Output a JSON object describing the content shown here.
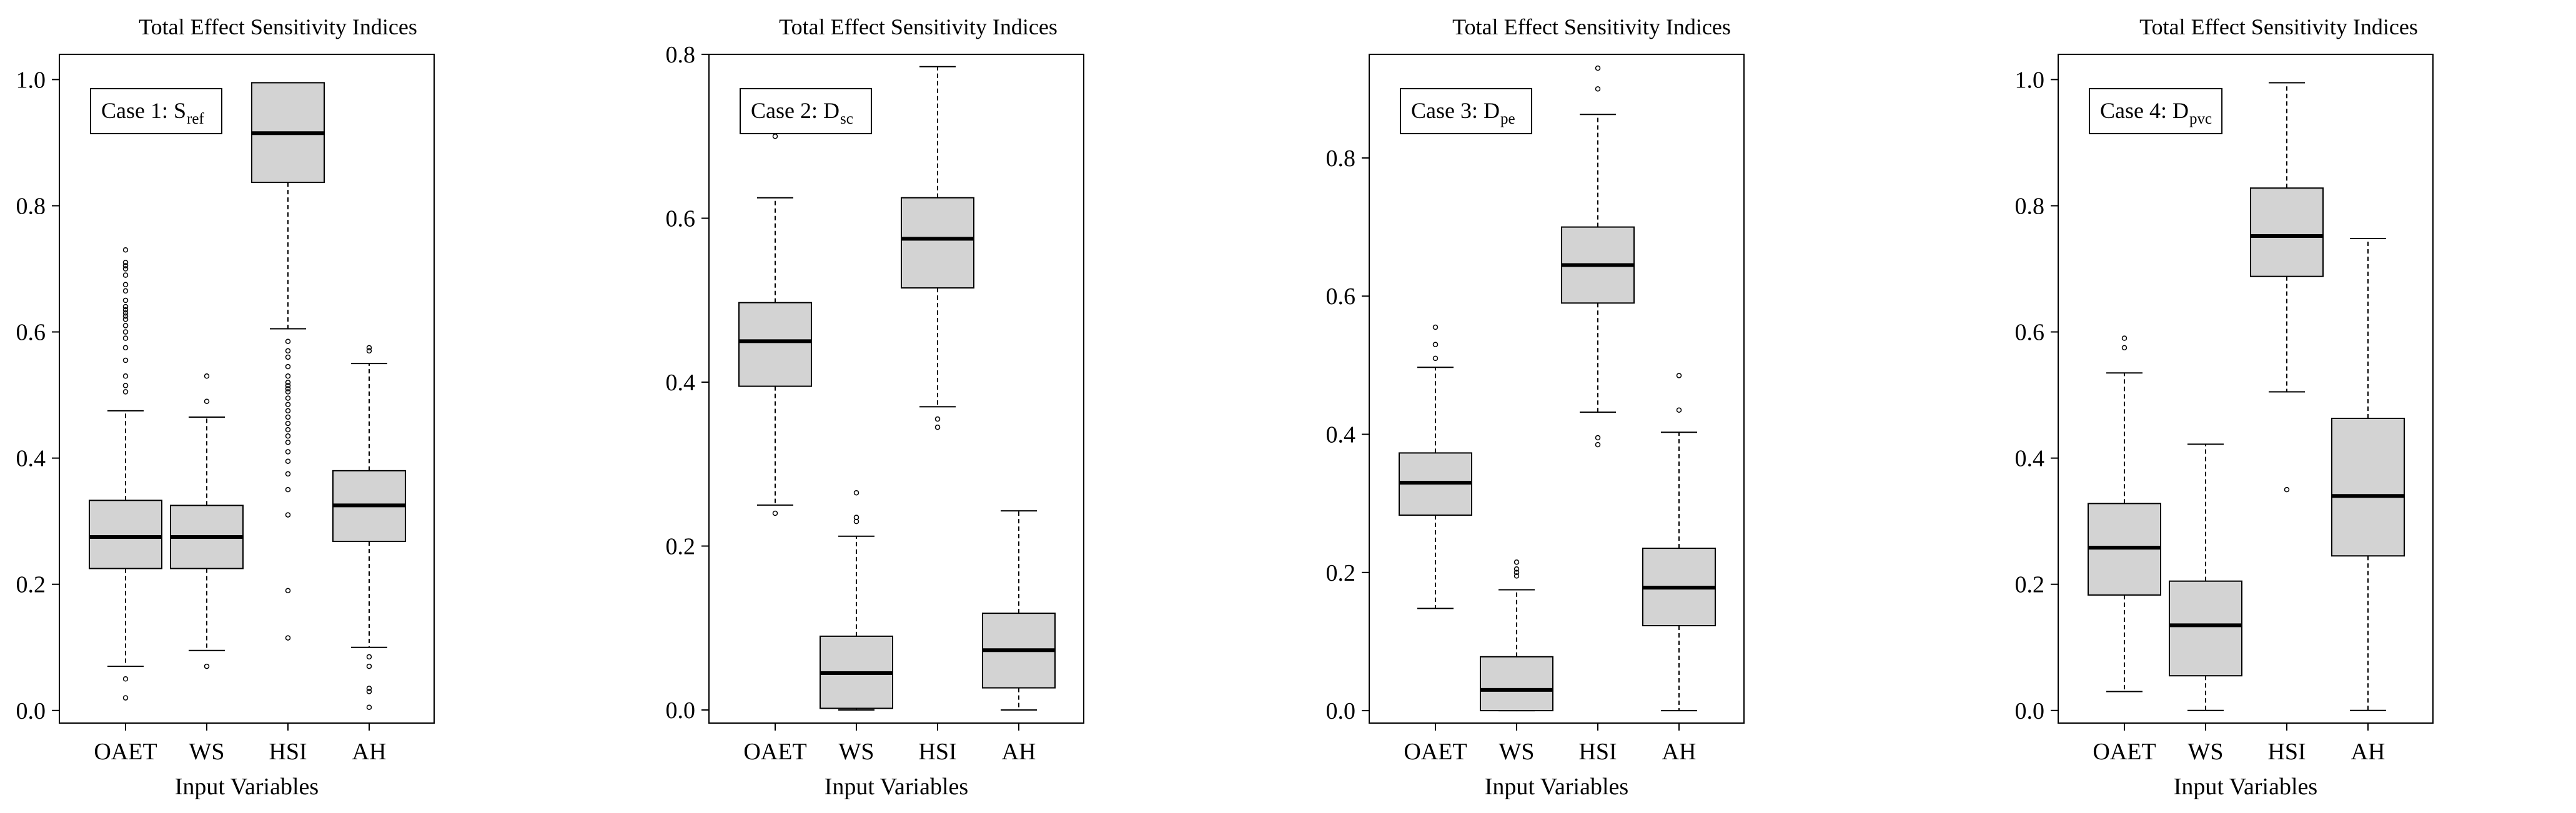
{
  "colors": {
    "box_fill": "#d3d3d3",
    "stroke": "#000000",
    "background": "#ffffff"
  },
  "chart_data": [
    {
      "type": "boxplot",
      "title": "Total Effect Sensitivity Indices",
      "case_label": "Case 1: S",
      "case_sub": "ref",
      "xlabel": "Input Variables",
      "ylabel": "",
      "ylim": [
        -0.02,
        1.04
      ],
      "yticks": [
        0.0,
        0.2,
        0.4,
        0.6,
        0.8,
        1.0
      ],
      "ytick_labels": [
        "0.0",
        "0.2",
        "0.4",
        "0.6",
        "0.8",
        "1.0"
      ],
      "categories": [
        "OAET",
        "WS",
        "HSI",
        "AH"
      ],
      "boxes": [
        {
          "name": "OAET",
          "whisker_low": 0.07,
          "q1": 0.225,
          "median": 0.275,
          "q3": 0.333,
          "whisker_high": 0.475,
          "outliers": [
            0.02,
            0.05,
            0.505,
            0.515,
            0.53,
            0.555,
            0.575,
            0.59,
            0.6,
            0.61,
            0.62,
            0.625,
            0.63,
            0.635,
            0.64,
            0.65,
            0.665,
            0.675,
            0.69,
            0.7,
            0.705,
            0.71,
            0.73
          ]
        },
        {
          "name": "WS",
          "whisker_low": 0.095,
          "q1": 0.225,
          "median": 0.275,
          "q3": 0.325,
          "whisker_high": 0.465,
          "outliers": [
            0.07,
            0.49,
            0.53
          ]
        },
        {
          "name": "HSI",
          "whisker_low": 0.605,
          "q1": 0.837,
          "median": 0.915,
          "q3": 0.995,
          "whisker_high": 0.995,
          "outliers": [
            0.115,
            0.19,
            0.31,
            0.35,
            0.375,
            0.395,
            0.41,
            0.425,
            0.435,
            0.445,
            0.455,
            0.465,
            0.475,
            0.485,
            0.495,
            0.505,
            0.51,
            0.515,
            0.52,
            0.53,
            0.545,
            0.56,
            0.57,
            0.585
          ]
        },
        {
          "name": "AH",
          "whisker_low": 0.1,
          "q1": 0.268,
          "median": 0.325,
          "q3": 0.38,
          "whisker_high": 0.55,
          "outliers": [
            0.005,
            0.03,
            0.035,
            0.07,
            0.085,
            0.57,
            0.575
          ]
        }
      ]
    },
    {
      "type": "boxplot",
      "title": "Total Effect Sensitivity Indices",
      "case_label": "Case 2: D",
      "case_sub": "sc",
      "xlabel": "Input Variables",
      "ylabel": "",
      "ylim": [
        -0.016,
        0.8
      ],
      "yticks": [
        0.0,
        0.2,
        0.4,
        0.6,
        0.8
      ],
      "ytick_labels": [
        "0.0",
        "0.2",
        "0.4",
        "0.6",
        "0.8"
      ],
      "categories": [
        "OAET",
        "WS",
        "HSI",
        "AH"
      ],
      "boxes": [
        {
          "name": "OAET",
          "whisker_low": 0.25,
          "q1": 0.395,
          "median": 0.45,
          "q3": 0.497,
          "whisker_high": 0.625,
          "outliers": [
            0.24,
            0.7
          ]
        },
        {
          "name": "WS",
          "whisker_low": 0.0,
          "q1": 0.002,
          "median": 0.045,
          "q3": 0.09,
          "whisker_high": 0.212,
          "outliers": [
            0.23,
            0.235,
            0.265
          ]
        },
        {
          "name": "HSI",
          "whisker_low": 0.37,
          "q1": 0.515,
          "median": 0.575,
          "q3": 0.625,
          "whisker_high": 0.785,
          "outliers": [
            0.345,
            0.355
          ]
        },
        {
          "name": "AH",
          "whisker_low": 0.0,
          "q1": 0.027,
          "median": 0.073,
          "q3": 0.118,
          "whisker_high": 0.243,
          "outliers": []
        }
      ]
    },
    {
      "type": "boxplot",
      "title": "Total Effect Sensitivity Indices",
      "case_label": "Case 3: D",
      "case_sub": "pe",
      "xlabel": "Input Variables",
      "ylabel": "",
      "ylim": [
        -0.018,
        0.95
      ],
      "yticks": [
        0.0,
        0.2,
        0.4,
        0.6,
        0.8
      ],
      "ytick_labels": [
        "0.0",
        "0.2",
        "0.4",
        "0.6",
        "0.8"
      ],
      "categories": [
        "OAET",
        "WS",
        "HSI",
        "AH"
      ],
      "boxes": [
        {
          "name": "OAET",
          "whisker_low": 0.148,
          "q1": 0.283,
          "median": 0.33,
          "q3": 0.373,
          "whisker_high": 0.497,
          "outliers": [
            0.51,
            0.53,
            0.555
          ]
        },
        {
          "name": "WS",
          "whisker_low": 0.0,
          "q1": 0.0,
          "median": 0.03,
          "q3": 0.078,
          "whisker_high": 0.175,
          "outliers": [
            0.195,
            0.2,
            0.205,
            0.215
          ]
        },
        {
          "name": "HSI",
          "whisker_low": 0.432,
          "q1": 0.59,
          "median": 0.645,
          "q3": 0.7,
          "whisker_high": 0.863,
          "outliers": [
            0.385,
            0.395,
            0.9,
            0.93
          ]
        },
        {
          "name": "AH",
          "whisker_low": 0.0,
          "q1": 0.123,
          "median": 0.178,
          "q3": 0.235,
          "whisker_high": 0.403,
          "outliers": [
            0.435,
            0.485
          ]
        }
      ]
    },
    {
      "type": "boxplot",
      "title": "Total Effect Sensitivity Indices",
      "case_label": "Case 4: D",
      "case_sub": "pvc",
      "xlabel": "Input Variables",
      "ylabel": "",
      "ylim": [
        -0.02,
        1.04
      ],
      "yticks": [
        0.0,
        0.2,
        0.4,
        0.6,
        0.8,
        1.0
      ],
      "ytick_labels": [
        "0.0",
        "0.2",
        "0.4",
        "0.6",
        "0.8",
        "1.0"
      ],
      "categories": [
        "OAET",
        "WS",
        "HSI",
        "AH"
      ],
      "boxes": [
        {
          "name": "OAET",
          "whisker_low": 0.03,
          "q1": 0.183,
          "median": 0.258,
          "q3": 0.328,
          "whisker_high": 0.535,
          "outliers": [
            0.575,
            0.59
          ]
        },
        {
          "name": "WS",
          "whisker_low": 0.0,
          "q1": 0.055,
          "median": 0.135,
          "q3": 0.205,
          "whisker_high": 0.422,
          "outliers": []
        },
        {
          "name": "HSI",
          "whisker_low": 0.505,
          "q1": 0.688,
          "median": 0.752,
          "q3": 0.828,
          "whisker_high": 0.995,
          "outliers": [
            0.35
          ]
        },
        {
          "name": "AH",
          "whisker_low": 0.0,
          "q1": 0.245,
          "median": 0.34,
          "q3": 0.463,
          "whisker_high": 0.748,
          "outliers": []
        }
      ]
    }
  ]
}
